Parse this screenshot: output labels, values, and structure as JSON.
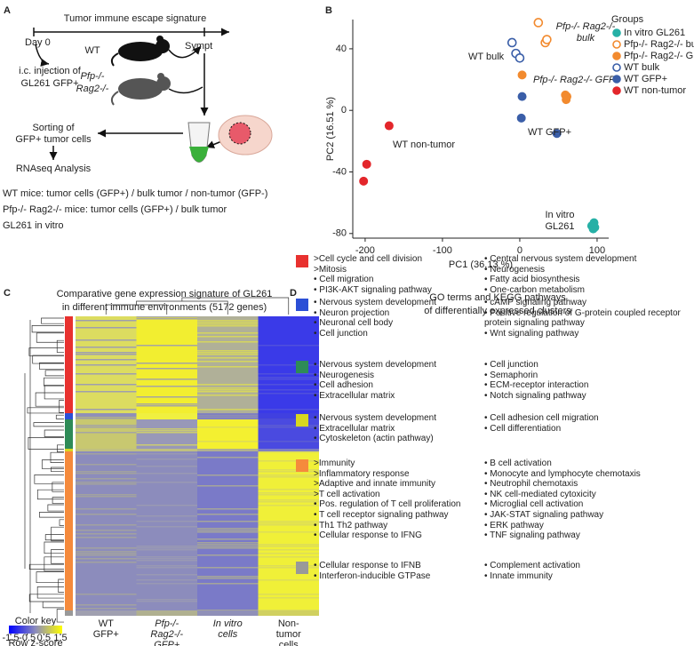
{
  "panel_labels": [
    "A",
    "B",
    "C",
    "D"
  ],
  "panel_a": {
    "title": "Tumor immune escape signature",
    "day0": "Day 0",
    "sympt": "Sympt",
    "wt": "WT",
    "pfp": [
      "Pfp-/-",
      "Rag2-/-"
    ],
    "injection": [
      "i.c. injection of",
      "GL261 GFP+"
    ],
    "sorting": [
      "Sorting of",
      "GFP+ tumor cells"
    ],
    "analysis": "RNAseq Analysis",
    "notes": [
      "WT mice: tumor cells (GFP+) / bulk tumor / non-tumor (GFP-)",
      "Pfp-/- Rag2-/- mice: tumor cells (GFP+) / bulk tumor",
      "GL261 in vitro"
    ]
  },
  "chart_data": {
    "type": "scatter",
    "xlabel": "PC1 (36.13 %)",
    "ylabel": "PC2 (16.51 %)",
    "xlim": [
      -216,
      115
    ],
    "ylim": [
      -83,
      59
    ],
    "xticks": [
      -200,
      -100,
      0,
      100
    ],
    "yticks": [
      -80,
      -40,
      0,
      40
    ],
    "legend_title": "Groups",
    "legend": "upper right",
    "series": [
      {
        "name": "In vitro GL261",
        "color": "#26b0a6",
        "hollow": false,
        "x": [
          93,
          95,
          97,
          96
        ],
        "values": [
          -75,
          -77,
          -76,
          -73
        ]
      },
      {
        "name": "Pfp-/- Rag2-/- bulk",
        "color": "#f28a2e",
        "hollow": true,
        "x": [
          24,
          33,
          35
        ],
        "values": [
          57,
          44,
          46
        ]
      },
      {
        "name": "Pfp-/- Rag2-/- GFP+",
        "color": "#f28a2e",
        "hollow": false,
        "x": [
          3,
          59,
          60,
          61
        ],
        "values": [
          23,
          10,
          7,
          9
        ]
      },
      {
        "name": "WT bulk",
        "color": "#3a5ea8",
        "hollow": true,
        "x": [
          -10,
          -5,
          0
        ],
        "values": [
          44,
          37,
          34
        ]
      },
      {
        "name": "WT GFP+",
        "color": "#3a5ea8",
        "hollow": false,
        "x": [
          3,
          2,
          48
        ],
        "values": [
          9,
          -5,
          -15
        ]
      },
      {
        "name": "WT non-tumor",
        "color": "#e3262b",
        "hollow": false,
        "x": [
          -169,
          -198,
          -202
        ],
        "values": [
          -10,
          -35,
          -46
        ]
      }
    ],
    "annotations": [
      {
        "text": [
          "Pfp-/- Rag2-/-",
          "bulk"
        ],
        "color": "#f28a2e"
      },
      {
        "text": [
          "WT bulk"
        ],
        "color": "#3a5ea8"
      },
      {
        "text": [
          "Pfp-/- Rag2-/- GFP+"
        ],
        "color": "#f28a2e"
      },
      {
        "text": [
          "WT GFP+"
        ],
        "color": "#3a5ea8"
      },
      {
        "text": [
          "WT non-tumor"
        ],
        "color": "#e3262b"
      },
      {
        "text": [
          "In vitro",
          "GL261"
        ],
        "color": "#26b0a6"
      }
    ]
  },
  "panel_c": {
    "title": [
      "Comparative gene expression signature of GL261",
      "in different immune environments (5172 genes)"
    ],
    "columns": [
      [
        "WT",
        "GFP+"
      ],
      [
        "Pfp-/-",
        "Rag2-/-",
        "GFP+"
      ],
      [
        "In vitro",
        "cells"
      ],
      [
        "Non-",
        "tumor",
        "cells"
      ]
    ],
    "color_key": {
      "title": "Color key",
      "ticks": [
        -1.5,
        -0.5,
        0.5,
        1.5
      ],
      "label": "Row z-score"
    }
  },
  "panel_d": {
    "title": [
      "GO terms and KEGG pathways",
      "of differentially expressed clusters"
    ],
    "clusters": [
      {
        "color": "#e8312f",
        "left": [
          ">Cell cycle and cell division",
          ">Mitosis",
          "• Cell migration",
          "• PI3K-AKT signaling pathway"
        ],
        "right": [
          "• Central nervous system development",
          "• Neurogenesis",
          "• Fatty acid biosynthesis",
          "• One-carbon metabolism"
        ]
      },
      {
        "color": "#2b4fd6",
        "left": [
          "• Nervous system development",
          "• Neuron projection",
          "• Neuronal cell body",
          "• Cell junction"
        ],
        "right": [
          "• cAMP signaling pathway",
          "• Positive regulation of G-protein coupled receptor protein signaling pathway",
          "• Wnt signaling pathway"
        ]
      },
      {
        "color": "#2e8b57",
        "left": [
          "• Nervous system development",
          "• Neurogenesis",
          "• Cell adhesion",
          "• Extracellular matrix"
        ],
        "right": [
          "• Cell junction",
          "• Semaphorin",
          "• ECM-receptor interaction",
          "• Notch signaling pathway"
        ]
      },
      {
        "color": "#d8d820",
        "left": [
          "• Nervous system development",
          "• Extracellular matrix",
          "• Cytoskeleton (actin pathway)"
        ],
        "right": [
          "• Cell adhesion cell migration",
          "• Cell differentiation"
        ]
      },
      {
        "color": "#f58a3c",
        "left": [
          ">Immunity",
          ">Inflammatory response",
          ">Adaptive and innate immunity",
          ">T cell activation",
          "• Pos. regulation of T cell proliferation",
          "• T cell receptor signaling pathway",
          "• Th1 Th2 pathway",
          "• Cellular response to IFNG"
        ],
        "right": [
          "• B cell activation",
          "• Monocyte and lymphocyte chemotaxis",
          "• Neutrophil chemotaxis",
          "• NK cell-mediated cytoxicity",
          "• Microglial cell activation",
          "• JAK-STAT signaling pathway",
          "• ERK pathway",
          "• TNF signaling pathway"
        ]
      },
      {
        "color": "#999999",
        "left": [
          "• Cellular response to IFNB",
          "• Interferon-inducible GTPase"
        ],
        "right": [
          "• Complement activation",
          "• Innate immunity"
        ]
      }
    ]
  }
}
